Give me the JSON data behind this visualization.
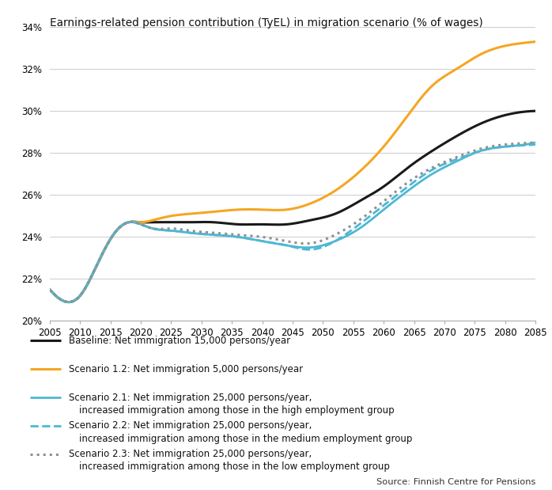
{
  "title": "Earnings-related pension contribution (TyEL) in migration scenario (% of wages)",
  "source": "Source: Finnish Centre for Pensions",
  "xlim": [
    2005,
    2085
  ],
  "ylim": [
    0.2,
    0.34
  ],
  "yticks": [
    0.2,
    0.22,
    0.24,
    0.26,
    0.28,
    0.3,
    0.32,
    0.34
  ],
  "xticks": [
    2005,
    2010,
    2015,
    2020,
    2025,
    2030,
    2035,
    2040,
    2045,
    2050,
    2055,
    2060,
    2065,
    2070,
    2075,
    2080,
    2085
  ],
  "baseline": {
    "x": [
      2005,
      2008,
      2010,
      2013,
      2016,
      2018,
      2020,
      2022,
      2025,
      2028,
      2032,
      2036,
      2040,
      2044,
      2048,
      2052,
      2056,
      2060,
      2064,
      2068,
      2072,
      2076,
      2080,
      2085
    ],
    "y": [
      0.215,
      0.209,
      0.212,
      0.228,
      0.243,
      0.247,
      0.247,
      0.247,
      0.247,
      0.247,
      0.247,
      0.246,
      0.246,
      0.246,
      0.248,
      0.251,
      0.257,
      0.264,
      0.273,
      0.281,
      0.288,
      0.294,
      0.298,
      0.3
    ],
    "color": "#1a1a1a",
    "linestyle": "solid",
    "linewidth": 2.2
  },
  "scenario_12": {
    "x": [
      2005,
      2008,
      2010,
      2013,
      2016,
      2018,
      2020,
      2022,
      2025,
      2028,
      2032,
      2036,
      2040,
      2044,
      2048,
      2052,
      2056,
      2060,
      2064,
      2068,
      2072,
      2076,
      2080,
      2085
    ],
    "y": [
      0.215,
      0.209,
      0.212,
      0.228,
      0.243,
      0.247,
      0.247,
      0.248,
      0.25,
      0.251,
      0.252,
      0.253,
      0.253,
      0.253,
      0.256,
      0.262,
      0.271,
      0.283,
      0.298,
      0.312,
      0.32,
      0.327,
      0.331,
      0.333
    ],
    "color": "#f5a623",
    "linestyle": "solid",
    "linewidth": 2.2
  },
  "scenario_21": {
    "x": [
      2005,
      2008,
      2010,
      2013,
      2016,
      2018,
      2020,
      2022,
      2025,
      2028,
      2032,
      2036,
      2040,
      2044,
      2048,
      2052,
      2056,
      2060,
      2064,
      2068,
      2072,
      2076,
      2080,
      2085
    ],
    "y": [
      0.215,
      0.209,
      0.212,
      0.228,
      0.243,
      0.247,
      0.246,
      0.244,
      0.243,
      0.242,
      0.241,
      0.24,
      0.238,
      0.236,
      0.235,
      0.238,
      0.244,
      0.253,
      0.262,
      0.27,
      0.276,
      0.281,
      0.283,
      0.285
    ],
    "color": "#4db8d4",
    "linestyle": "solid",
    "linewidth": 2.0
  },
  "scenario_22": {
    "x": [
      2005,
      2008,
      2010,
      2013,
      2016,
      2018,
      2020,
      2022,
      2025,
      2028,
      2032,
      2036,
      2040,
      2044,
      2048,
      2052,
      2056,
      2060,
      2064,
      2068,
      2072,
      2076,
      2080,
      2085
    ],
    "y": [
      0.215,
      0.209,
      0.212,
      0.228,
      0.243,
      0.247,
      0.246,
      0.244,
      0.243,
      0.242,
      0.241,
      0.24,
      0.238,
      0.236,
      0.234,
      0.238,
      0.246,
      0.255,
      0.264,
      0.272,
      0.277,
      0.281,
      0.283,
      0.284
    ],
    "color": "#4db8d4",
    "linestyle": "dashed",
    "linewidth": 2.0
  },
  "scenario_23": {
    "x": [
      2005,
      2008,
      2010,
      2013,
      2016,
      2018,
      2020,
      2022,
      2025,
      2028,
      2032,
      2036,
      2040,
      2044,
      2048,
      2052,
      2056,
      2060,
      2064,
      2068,
      2072,
      2076,
      2080,
      2085
    ],
    "y": [
      0.215,
      0.209,
      0.212,
      0.228,
      0.243,
      0.247,
      0.246,
      0.244,
      0.244,
      0.243,
      0.242,
      0.241,
      0.24,
      0.238,
      0.237,
      0.241,
      0.248,
      0.257,
      0.266,
      0.273,
      0.278,
      0.282,
      0.284,
      0.285
    ],
    "color": "#909090",
    "linestyle": "dotted",
    "linewidth": 2.2
  },
  "legend": [
    {
      "linestyle": "solid",
      "color": "#1a1a1a",
      "linewidth": 2.2,
      "line1": "Baseline: Net immigration 15,000 persons/year",
      "line2": ""
    },
    {
      "linestyle": "solid",
      "color": "#f5a623",
      "linewidth": 2.2,
      "line1": "Scenario 1.2: Net immigration 5,000 persons/year",
      "line2": ""
    },
    {
      "linestyle": "solid",
      "color": "#4db8d4",
      "linewidth": 2.0,
      "line1": "Scenario 2.1: Net immigration 25,000 persons/year,",
      "line2": "increased immigration among those in the high employment group"
    },
    {
      "linestyle": "dashed",
      "color": "#4db8d4",
      "linewidth": 2.0,
      "line1": "Scenario 2.2: Net immigration 25,000 persons/year,",
      "line2": "increased immigration among those in the medium employment group"
    },
    {
      "linestyle": "dotted",
      "color": "#909090",
      "linewidth": 2.2,
      "line1": "Scenario 2.3: Net immigration 25,000 persons/year,",
      "line2": "increased immigration among those in the low employment group"
    }
  ]
}
